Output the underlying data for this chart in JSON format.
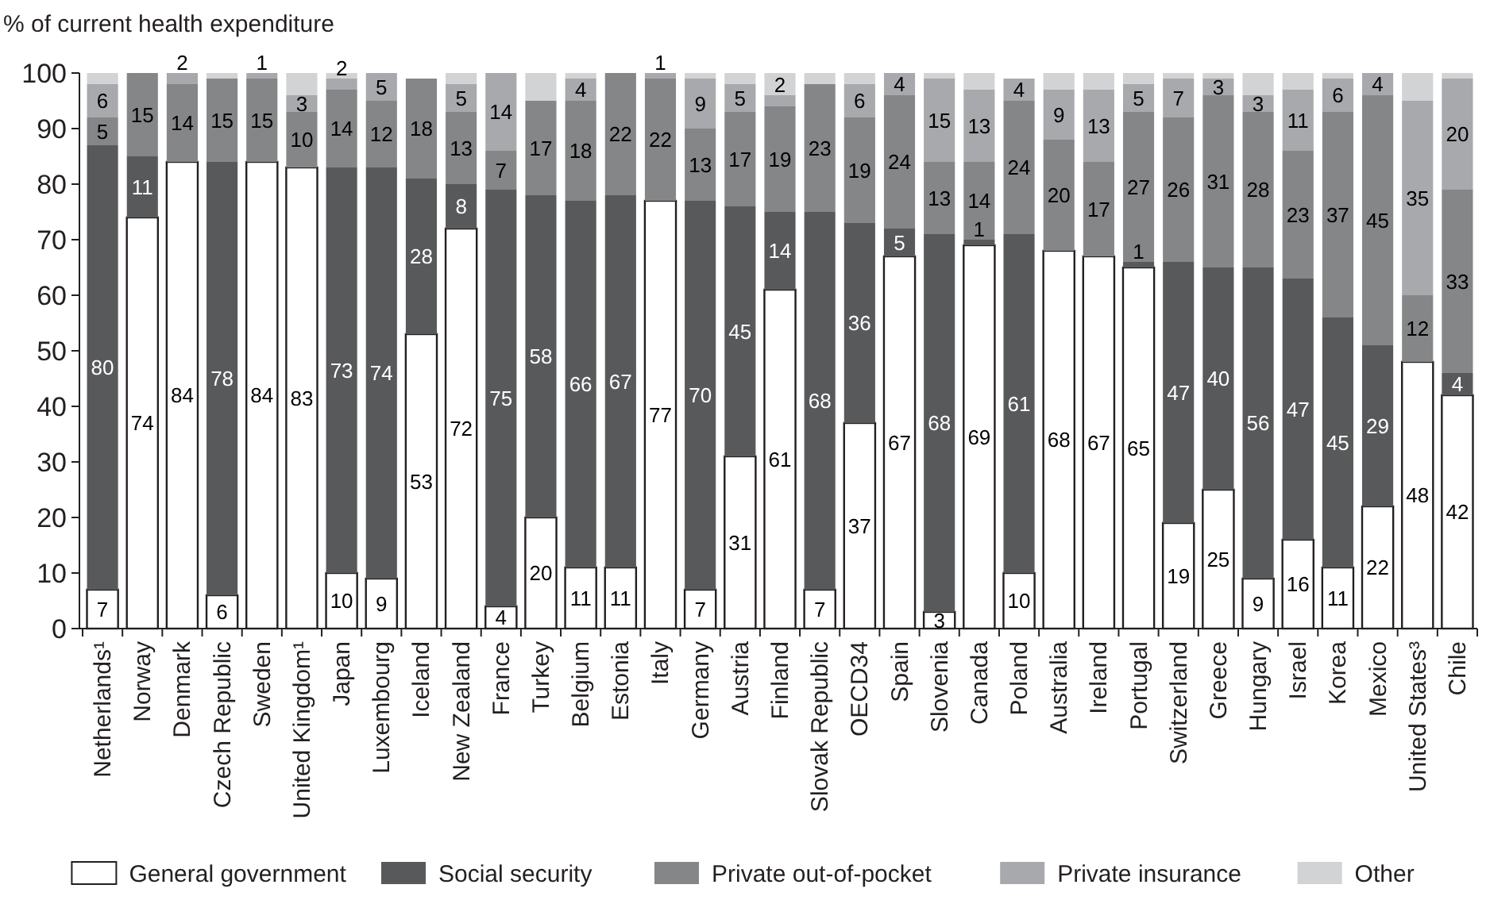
{
  "chart_data": {
    "type": "bar",
    "stacked": true,
    "ylabel": "% of current health expenditure",
    "ylim": [
      0,
      100
    ],
    "yticks": [
      0,
      10,
      20,
      30,
      40,
      50,
      60,
      70,
      80,
      90,
      100
    ],
    "grid": false,
    "legend": "bottom",
    "categories": [
      "Netherlands¹",
      "Norway",
      "Denmark",
      "Czech Republic",
      "Sweden",
      "United Kingdom¹",
      "Japan",
      "Luxembourg",
      "Iceland",
      "New Zealand",
      "France",
      "Turkey",
      "Belgium",
      "Estonia",
      "Italy",
      "Germany",
      "Austria",
      "Finland",
      "Slovak Republic",
      "OECD34",
      "Spain",
      "Slovenia",
      "Canada",
      "Poland",
      "Australia",
      "Ireland",
      "Portugal",
      "Switzerland",
      "Greece",
      "Hungary",
      "Israel",
      "Korea",
      "Mexico",
      "United States³",
      "Chile"
    ],
    "series": [
      {
        "name": "General government",
        "color": "#ffffff",
        "values": [
          7,
          74,
          84,
          6,
          84,
          83,
          10,
          9,
          53,
          72,
          4,
          20,
          11,
          11,
          77,
          7,
          31,
          61,
          7,
          37,
          67,
          3,
          69,
          10,
          68,
          67,
          65,
          19,
          25,
          9,
          16,
          11,
          22,
          48,
          42
        ],
        "value_labels": [
          "7",
          "74",
          "84",
          "6",
          "84",
          "83",
          "10",
          "9",
          "53",
          "72",
          "4",
          "20",
          "11",
          "11",
          "77",
          "7",
          "31",
          "61",
          "7",
          "37",
          "67",
          "3",
          "69",
          "10",
          "68",
          "67",
          "65",
          "19",
          "25",
          "9",
          "16",
          "11",
          "22",
          "48",
          "42"
        ]
      },
      {
        "name": "Social security",
        "color": "#58595b",
        "values": [
          80,
          11,
          0,
          78,
          0,
          0,
          73,
          74,
          28,
          8,
          75,
          58,
          66,
          67,
          0,
          70,
          45,
          14,
          68,
          36,
          5,
          68,
          1,
          61,
          0,
          0,
          1,
          47,
          40,
          56,
          47,
          45,
          29,
          0,
          4
        ],
        "value_labels": [
          "80",
          "11",
          null,
          "78",
          null,
          null,
          "73",
          "74",
          "28",
          "8",
          "75",
          "58",
          "66",
          "67",
          null,
          "70",
          "45",
          "14",
          "68",
          "36",
          "5",
          "68",
          "1",
          "61",
          null,
          null,
          "1",
          "47",
          "40",
          "56",
          "47",
          "45",
          "29",
          null,
          "4"
        ]
      },
      {
        "name": "Private out-of-pocket",
        "color": "#848688",
        "values": [
          5,
          15,
          14,
          15,
          15,
          10,
          14,
          12,
          18,
          13,
          7,
          17,
          18,
          22,
          22,
          13,
          17,
          19,
          23,
          19,
          24,
          13,
          14,
          24,
          20,
          17,
          27,
          26,
          31,
          28,
          23,
          37,
          45,
          12,
          33
        ],
        "value_labels": [
          "5",
          "15",
          "14",
          "15",
          "15",
          "10",
          "14",
          "12",
          "18",
          "13",
          "7",
          "17",
          "18",
          "22",
          "22",
          "13",
          "17",
          "19",
          "23",
          "19",
          "24",
          "13",
          "14",
          "24",
          "20",
          "17",
          "27",
          "26",
          "31",
          "28",
          "23",
          "37",
          "45",
          "12",
          "33"
        ]
      },
      {
        "name": "Private insurance",
        "color": "#a7a9ac",
        "values": [
          6,
          0,
          2,
          0,
          1,
          3,
          2,
          5,
          0,
          5,
          14,
          0,
          4,
          0,
          1,
          9,
          5,
          2,
          0,
          6,
          4,
          15,
          13,
          4,
          9,
          13,
          5,
          7,
          3,
          3,
          11,
          6,
          4,
          35,
          20
        ],
        "value_labels": [
          "6",
          null,
          "2",
          null,
          "1",
          "3",
          "2",
          "5",
          null,
          "5",
          "14",
          null,
          "4",
          null,
          "1",
          "9",
          "5",
          "2",
          null,
          "6",
          "4",
          "15",
          "13",
          "4",
          "9",
          "13",
          "5",
          "7",
          "3",
          "3",
          "11",
          "6",
          "4",
          "35",
          "20"
        ]
      },
      {
        "name": "Other",
        "color": "#d1d3d4",
        "values": [
          2,
          0,
          0,
          1,
          0,
          4,
          1,
          0,
          0,
          2,
          0,
          5,
          1,
          0,
          0,
          1,
          2,
          4,
          2,
          2,
          0,
          1,
          3,
          0,
          3,
          3,
          2,
          1,
          1,
          4,
          3,
          1,
          0,
          5,
          1
        ]
      }
    ]
  }
}
